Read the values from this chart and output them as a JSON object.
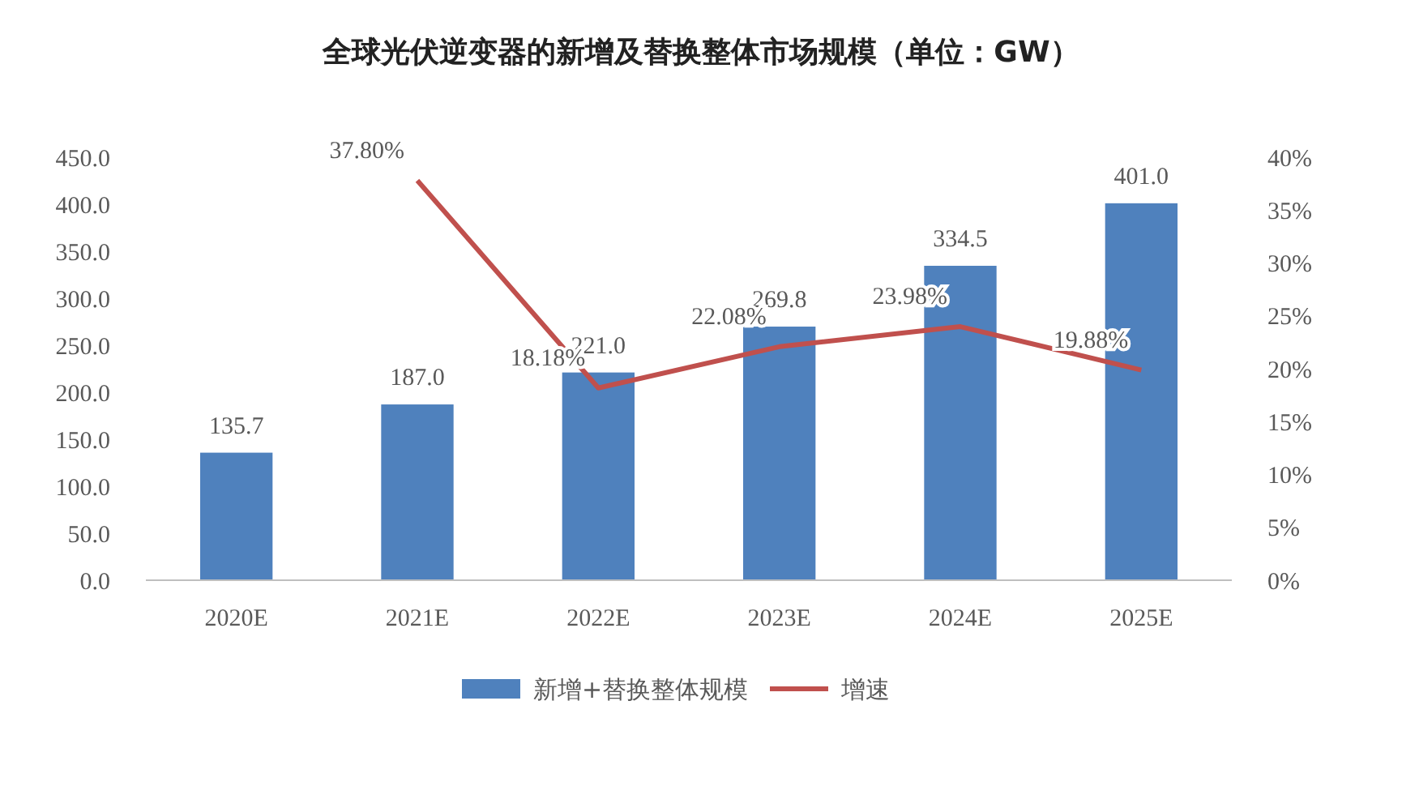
{
  "chart_data": {
    "type": "bar",
    "title": "全球光伏逆变器的新增及替换整体市场规模（单位：GW）",
    "categories": [
      "2020E",
      "2021E",
      "2022E",
      "2023E",
      "2024E",
      "2025E"
    ],
    "series": [
      {
        "name": "新增+替换整体规模",
        "color": "#4f81bd",
        "values": [
          135.7,
          187.0,
          221.0,
          269.8,
          334.5,
          401.0
        ],
        "value_labels": [
          "135.7",
          "187.0",
          "221.0",
          "269.8",
          "334.5",
          "401.0"
        ]
      },
      {
        "name": "增速",
        "type": "line",
        "axis": "y2",
        "color": "#c0504d",
        "values": [
          null,
          37.8,
          18.18,
          22.08,
          23.98,
          19.88
        ],
        "value_labels": [
          null,
          "37.80%",
          "18.18%",
          "22.08%",
          "23.98%",
          "19.88%"
        ]
      }
    ],
    "ylim": [
      0,
      450
    ],
    "yticks": [
      {
        "value": 0,
        "label": "0.0"
      },
      {
        "value": 50,
        "label": "50.0"
      },
      {
        "value": 100,
        "label": "100.0"
      },
      {
        "value": 150,
        "label": "150.0"
      },
      {
        "value": 200,
        "label": "200.0"
      },
      {
        "value": 250,
        "label": "250.0"
      },
      {
        "value": 300,
        "label": "300.0"
      },
      {
        "value": 350,
        "label": "350.0"
      },
      {
        "value": 400,
        "label": "400.0"
      },
      {
        "value": 450,
        "label": "450.0"
      }
    ],
    "y2lim": [
      0,
      40
    ],
    "y2ticks": [
      {
        "value": 0,
        "label": "0%"
      },
      {
        "value": 5,
        "label": "5%"
      },
      {
        "value": 10,
        "label": "10%"
      },
      {
        "value": 15,
        "label": "15%"
      },
      {
        "value": 20,
        "label": "20%"
      },
      {
        "value": 25,
        "label": "25%"
      },
      {
        "value": 30,
        "label": "30%"
      },
      {
        "value": 35,
        "label": "35%"
      },
      {
        "value": 40,
        "label": "40%"
      }
    ],
    "legend": "bottom",
    "grid": false
  }
}
